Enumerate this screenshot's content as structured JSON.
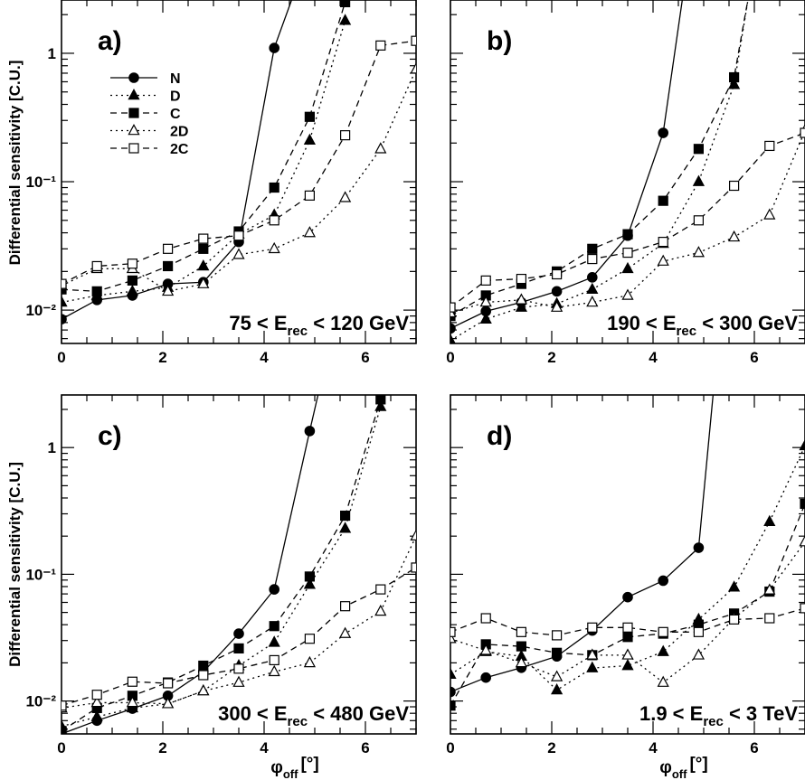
{
  "figure": {
    "ylabel": "Differential sensitivity [C.U.]",
    "xlabel_main": "φ",
    "xlabel_sub": "off",
    "xlabel_unit": "[°]"
  },
  "legend": [
    {
      "name": "N",
      "series": "N"
    },
    {
      "name": "D",
      "series": "D"
    },
    {
      "name": "C",
      "series": "C"
    },
    {
      "name": "2D",
      "series": "2D"
    },
    {
      "name": "2C",
      "series": "2C"
    }
  ],
  "chart_data": [
    {
      "type": "line",
      "label": "a)",
      "energy_label": {
        "pre": "75 < E",
        "sub": "rec",
        "post": " < 120 GeV"
      },
      "xlim": [
        0,
        7
      ],
      "ylim": [
        0.0055,
        2.6
      ],
      "log_y": true,
      "x_ticks": [
        0,
        2,
        4,
        6
      ],
      "y_tick_labels": [
        "10⁻²",
        "10⁻¹",
        "1"
      ],
      "series": [
        {
          "name": "N",
          "x": [
            0,
            0.7,
            1.4,
            2.1,
            2.8,
            3.5,
            4.2,
            4.6
          ],
          "y": [
            0.0085,
            0.012,
            0.013,
            0.016,
            0.0165,
            0.034,
            1.1,
            3.0
          ]
        },
        {
          "name": "D",
          "x": [
            0,
            0.7,
            1.4,
            2.1,
            2.8,
            3.5,
            4.2,
            4.9,
            5.6
          ],
          "y": [
            0.0115,
            0.013,
            0.014,
            0.015,
            0.022,
            0.039,
            0.055,
            0.21,
            1.8
          ]
        },
        {
          "name": "C",
          "x": [
            0,
            0.7,
            1.4,
            2.1,
            2.8,
            3.5,
            4.2,
            4.9,
            5.6
          ],
          "y": [
            0.0145,
            0.014,
            0.017,
            0.022,
            0.03,
            0.041,
            0.09,
            0.32,
            2.5
          ]
        },
        {
          "name": "2D",
          "x": [
            0,
            0.7,
            1.4,
            2.1,
            2.8,
            3.5,
            4.2,
            4.9,
            5.6,
            6.3,
            7.0
          ],
          "y": [
            0.0155,
            0.021,
            0.021,
            0.014,
            0.016,
            0.027,
            0.03,
            0.04,
            0.075,
            0.18,
            0.75
          ]
        },
        {
          "name": "2C",
          "x": [
            0,
            0.7,
            1.4,
            2.1,
            2.8,
            3.5,
            4.2,
            4.9,
            5.6,
            6.3,
            7.0
          ],
          "y": [
            0.016,
            0.022,
            0.023,
            0.03,
            0.036,
            0.038,
            0.05,
            0.078,
            0.23,
            1.15,
            1.25
          ]
        }
      ]
    },
    {
      "type": "line",
      "label": "b)",
      "energy_label": {
        "pre": "190 < E",
        "sub": "rec",
        "post": " < 300 GeV"
      },
      "xlim": [
        0,
        7
      ],
      "ylim": [
        0.0055,
        2.6
      ],
      "log_y": true,
      "x_ticks": [
        0,
        2,
        4,
        6
      ],
      "y_tick_labels": [
        "",
        "",
        ""
      ],
      "series": [
        {
          "name": "N",
          "x": [
            0,
            0.7,
            1.4,
            2.1,
            2.8,
            3.5,
            4.2,
            4.6
          ],
          "y": [
            0.0072,
            0.0098,
            0.0115,
            0.014,
            0.018,
            0.038,
            0.24,
            3.0
          ]
        },
        {
          "name": "D",
          "x": [
            0,
            0.7,
            1.4,
            2.1,
            2.8,
            3.5,
            4.2,
            4.9,
            5.6,
            5.9
          ],
          "y": [
            0.0058,
            0.0085,
            0.0105,
            0.0112,
            0.0145,
            0.021,
            0.033,
            0.1,
            0.57,
            3.0
          ]
        },
        {
          "name": "C",
          "x": [
            0,
            0.7,
            1.4,
            2.1,
            2.8,
            3.5,
            4.2,
            4.9,
            5.6,
            5.9
          ],
          "y": [
            0.009,
            0.013,
            0.016,
            0.02,
            0.03,
            0.039,
            0.071,
            0.18,
            0.65,
            3.0
          ]
        },
        {
          "name": "2D",
          "x": [
            0,
            0.7,
            1.4,
            2.1,
            2.8,
            3.5,
            4.2,
            4.9,
            5.6,
            6.3,
            7.0
          ],
          "y": [
            0.0095,
            0.0115,
            0.012,
            0.0105,
            0.0115,
            0.013,
            0.024,
            0.028,
            0.037,
            0.055,
            0.25
          ]
        },
        {
          "name": "2C",
          "x": [
            0,
            0.7,
            1.4,
            2.1,
            2.8,
            3.5,
            4.2,
            4.9,
            5.6,
            6.3,
            7.0
          ],
          "y": [
            0.0105,
            0.017,
            0.0175,
            0.019,
            0.025,
            0.028,
            0.034,
            0.05,
            0.093,
            0.19,
            0.24
          ]
        }
      ]
    },
    {
      "type": "line",
      "label": "c)",
      "energy_label": {
        "pre": "300 < E",
        "sub": "rec",
        "post": " < 480 GeV"
      },
      "xlim": [
        0,
        7
      ],
      "ylim": [
        0.0055,
        2.6
      ],
      "log_y": true,
      "x_ticks": [
        0,
        2,
        4,
        6
      ],
      "y_tick_labels": [
        "10⁻²",
        "10⁻¹",
        "1"
      ],
      "series": [
        {
          "name": "N",
          "x": [
            0,
            0.7,
            1.4,
            2.1,
            2.8,
            3.5,
            4.2,
            4.9,
            5.1
          ],
          "y": [
            0.0055,
            0.007,
            0.0087,
            0.011,
            0.017,
            0.034,
            0.076,
            1.35,
            3.0
          ]
        },
        {
          "name": "D",
          "x": [
            0,
            0.7,
            1.4,
            2.1,
            2.8,
            3.5,
            4.2,
            4.9,
            5.6,
            6.3
          ],
          "y": [
            0.0063,
            0.0075,
            0.0088,
            0.0095,
            0.012,
            0.019,
            0.029,
            0.083,
            0.23,
            2.1
          ]
        },
        {
          "name": "C",
          "x": [
            0,
            0.7,
            1.4,
            2.1,
            2.8,
            3.5,
            4.2,
            4.9,
            5.6,
            6.3
          ],
          "y": [
            0.0058,
            0.0088,
            0.011,
            0.014,
            0.019,
            0.026,
            0.039,
            0.096,
            0.29,
            2.4
          ]
        },
        {
          "name": "2D",
          "x": [
            0,
            0.7,
            1.4,
            2.1,
            2.8,
            3.5,
            4.2,
            4.9,
            5.6,
            6.3,
            7.0
          ],
          "y": [
            0.0088,
            0.0097,
            0.0097,
            0.0095,
            0.012,
            0.014,
            0.017,
            0.02,
            0.034,
            0.051,
            0.2
          ]
        },
        {
          "name": "2C",
          "x": [
            0,
            0.7,
            1.4,
            2.1,
            2.8,
            3.5,
            4.2,
            4.9,
            5.6,
            6.3,
            7.0
          ],
          "y": [
            0.0092,
            0.0112,
            0.0142,
            0.0138,
            0.016,
            0.018,
            0.021,
            0.031,
            0.056,
            0.076,
            0.113
          ]
        }
      ]
    },
    {
      "type": "line",
      "label": "d)",
      "energy_label": {
        "pre": "1.9 < E",
        "sub": "rec",
        "post": " < 3 TeV"
      },
      "xlim": [
        0,
        7
      ],
      "ylim": [
        0.0055,
        2.6
      ],
      "log_y": true,
      "x_ticks": [
        0,
        2,
        4,
        6
      ],
      "y_tick_labels": [
        "",
        "",
        ""
      ],
      "series": [
        {
          "name": "N",
          "x": [
            0,
            0.7,
            1.4,
            2.1,
            2.8,
            3.5,
            4.2,
            4.9,
            5.2
          ],
          "y": [
            0.0118,
            0.0153,
            0.0183,
            0.0225,
            0.036,
            0.066,
            0.089,
            0.162,
            3.0
          ]
        },
        {
          "name": "D",
          "x": [
            0,
            0.7,
            1.4,
            2.1,
            2.8,
            3.5,
            4.2,
            4.9,
            5.6,
            6.3,
            7.0
          ],
          "y": [
            0.0162,
            0.0245,
            0.0225,
            0.0122,
            0.0182,
            0.019,
            0.0245,
            0.044,
            0.079,
            0.26,
            1.03
          ]
        },
        {
          "name": "C",
          "x": [
            0,
            0.7,
            1.4,
            2.1,
            2.8,
            3.5,
            4.2,
            4.9,
            5.6,
            6.3,
            7.0
          ],
          "y": [
            0.0092,
            0.028,
            0.027,
            0.024,
            0.023,
            0.032,
            0.034,
            0.04,
            0.049,
            0.073,
            0.36
          ]
        },
        {
          "name": "2D",
          "x": [
            0,
            0.7,
            1.4,
            2.1,
            2.8,
            3.5,
            4.2,
            4.9,
            5.6,
            6.3,
            7.0
          ],
          "y": [
            0.031,
            0.025,
            0.02,
            0.0155,
            0.023,
            0.023,
            0.014,
            0.023,
            0.045,
            0.075,
            0.18
          ]
        },
        {
          "name": "2C",
          "x": [
            0,
            0.7,
            1.4,
            2.1,
            2.8,
            3.5,
            4.2,
            4.9,
            5.6,
            6.3,
            7.0
          ],
          "y": [
            0.035,
            0.045,
            0.035,
            0.033,
            0.038,
            0.038,
            0.035,
            0.035,
            0.044,
            0.045,
            0.054
          ]
        }
      ]
    }
  ]
}
